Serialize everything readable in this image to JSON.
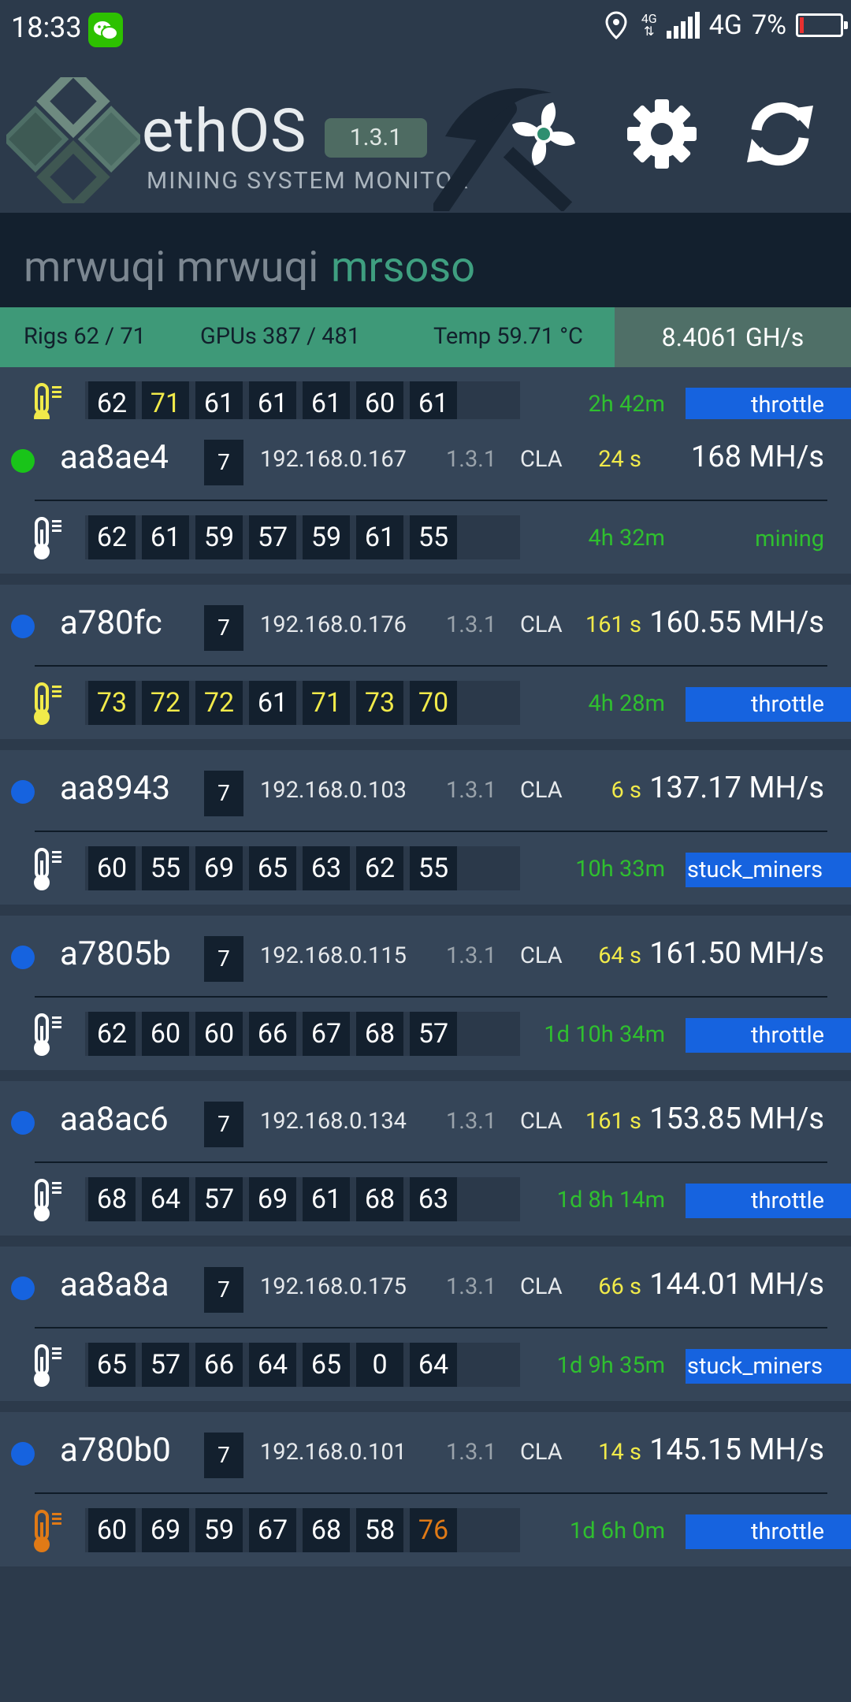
{
  "statusbar": {
    "time": "18:33",
    "network_small": "4G",
    "network": "4G",
    "battery": "7%"
  },
  "header": {
    "brand": "ethOS",
    "subtitle": "MINING SYSTEM MONITOR",
    "version": "1.3.1",
    "icons": [
      "fan-icon",
      "gear-icon",
      "refresh-icon"
    ]
  },
  "tabs": [
    {
      "label": "mrwuqi",
      "active": false
    },
    {
      "label": "mrwuqi",
      "active": false
    },
    {
      "label": "mrsoso",
      "active": true
    }
  ],
  "stats": {
    "rigs": "Rigs 62 / 71",
    "gpus": "GPUs 387 / 481",
    "temp": "Temp 59.71 °C",
    "hashrate": "8.4061 GH/s"
  },
  "colors": {
    "online": "#19c419",
    "idle": "#1663df",
    "hot": "#f1ea4a",
    "overheat": "#e07a16"
  },
  "partial_rig": {
    "temps": [
      "62",
      "71",
      "61",
      "61",
      "61",
      "60",
      "61"
    ],
    "uptime": "2h 42m",
    "status": "throttle"
  },
  "rigs": [
    {
      "name": "aa8ae4",
      "gpus": "7",
      "ip": "192.168.0.167",
      "version": "1.3.1",
      "miner": "CLA",
      "age": "24 s",
      "hashrate": "168 MH/s",
      "dot": "green",
      "temps": [
        "62",
        "61",
        "59",
        "57",
        "59",
        "61",
        "55"
      ],
      "uptime": "4h 32m",
      "status": "mining"
    },
    {
      "name": "a780fc",
      "gpus": "7",
      "ip": "192.168.0.176",
      "version": "1.3.1",
      "miner": "CLA",
      "age": "161 s",
      "hashrate": "160.55 MH/s",
      "dot": "blue",
      "temps": [
        "73",
        "72",
        "72",
        "61",
        "71",
        "73",
        "70"
      ],
      "uptime": "4h 28m",
      "status": "throttle"
    },
    {
      "name": "aa8943",
      "gpus": "7",
      "ip": "192.168.0.103",
      "version": "1.3.1",
      "miner": "CLA",
      "age": "6 s",
      "hashrate": "137.17 MH/s",
      "dot": "blue",
      "temps": [
        "60",
        "55",
        "69",
        "65",
        "63",
        "62",
        "55"
      ],
      "uptime": "10h 33m",
      "status": "stuck_miners"
    },
    {
      "name": "a7805b",
      "gpus": "7",
      "ip": "192.168.0.115",
      "version": "1.3.1",
      "miner": "CLA",
      "age": "64 s",
      "hashrate": "161.50 MH/s",
      "dot": "blue",
      "temps": [
        "62",
        "60",
        "60",
        "66",
        "67",
        "68",
        "57"
      ],
      "uptime": "1d 10h 34m",
      "status": "throttle"
    },
    {
      "name": "aa8ac6",
      "gpus": "7",
      "ip": "192.168.0.134",
      "version": "1.3.1",
      "miner": "CLA",
      "age": "161 s",
      "hashrate": "153.85 MH/s",
      "dot": "blue",
      "temps": [
        "68",
        "64",
        "57",
        "69",
        "61",
        "68",
        "63"
      ],
      "uptime": "1d 8h 14m",
      "status": "throttle"
    },
    {
      "name": "aa8a8a",
      "gpus": "7",
      "ip": "192.168.0.175",
      "version": "1.3.1",
      "miner": "CLA",
      "age": "66 s",
      "hashrate": "144.01 MH/s",
      "dot": "blue",
      "temps": [
        "65",
        "57",
        "66",
        "64",
        "65",
        "0",
        "64"
      ],
      "uptime": "1d 9h 35m",
      "status": "stuck_miners"
    },
    {
      "name": "a780b0",
      "gpus": "7",
      "ip": "192.168.0.101",
      "version": "1.3.1",
      "miner": "CLA",
      "age": "14 s",
      "hashrate": "145.15 MH/s",
      "dot": "blue",
      "temps": [
        "60",
        "69",
        "59",
        "67",
        "68",
        "58",
        "76"
      ],
      "uptime": "1d 6h 0m",
      "status": "throttle"
    }
  ]
}
